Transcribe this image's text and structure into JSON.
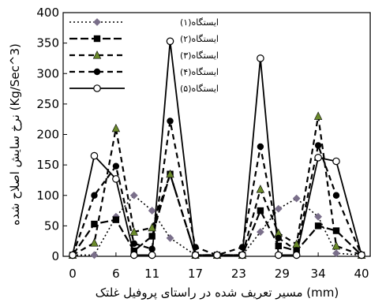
{
  "chart_data": {
    "type": "line",
    "title": "",
    "xlabel": "مسیر تعریف شده در راستای پروفیل غلتک (mm)",
    "ylabel": "نرخ سایش اصلاح شده (Kg/Sec^3)",
    "ylim": [
      0,
      400
    ],
    "y_ticks": [
      "0",
      "50",
      "100",
      "150",
      "200",
      "250",
      "300",
      "350",
      "400"
    ],
    "x_ticks": [
      "0",
      "6",
      "11",
      "17",
      "23",
      "29",
      "34",
      "40"
    ],
    "grid": false,
    "legend_position": "top-left",
    "x": [
      0,
      3,
      6,
      8.5,
      11,
      13.5,
      17,
      20,
      23.5,
      26,
      28.5,
      31,
      34,
      36.5,
      40
    ],
    "series": [
      {
        "name": "ایستگاه(۱)",
        "style": "dotted",
        "marker": "diamond-filled",
        "color": "#7a6f8a",
        "values": [
          2,
          2,
          65,
          100,
          75,
          30,
          2,
          2,
          2,
          40,
          78,
          95,
          65,
          5,
          2
        ]
      },
      {
        "name": "ایستگاه(۲)",
        "style": "long-dash",
        "marker": "square-filled",
        "color": "#000000",
        "values": [
          2,
          53,
          60,
          9,
          33,
          135,
          2,
          2,
          2,
          75,
          17,
          9,
          50,
          42,
          2
        ]
      },
      {
        "name": "ایستگاه(۳)",
        "style": "dash",
        "marker": "triangle-filled",
        "color": "#000000",
        "values": [
          2,
          22,
          210,
          40,
          47,
          135,
          2,
          2,
          2,
          110,
          38,
          20,
          230,
          17,
          2
        ]
      },
      {
        "name": "ایستگاه(۴)",
        "style": "dash",
        "marker": "circle-filled",
        "color": "#000000",
        "values": [
          2,
          100,
          148,
          21,
          12,
          222,
          15,
          2,
          15,
          180,
          30,
          10,
          182,
          100,
          2
        ]
      },
      {
        "name": "ایستگاه(۵)",
        "style": "solid",
        "marker": "circle-open",
        "color": "#000000",
        "values": [
          2,
          165,
          127,
          2,
          2,
          353,
          2,
          2,
          2,
          325,
          2,
          2,
          162,
          156,
          2
        ]
      }
    ]
  }
}
